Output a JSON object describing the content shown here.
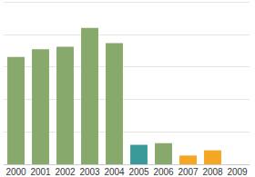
{
  "chart_data": {
    "type": "bar",
    "categories": [
      "2000",
      "2001",
      "2002",
      "2003",
      "2004",
      "2005",
      "2006",
      "2007",
      "2008",
      "2009"
    ],
    "values": [
      3.3,
      3.54,
      3.62,
      4.2,
      3.73,
      0.6,
      0.65,
      0.27,
      0.43,
      null
    ],
    "colors": [
      "#87a96b",
      "#87a96b",
      "#87a96b",
      "#87a96b",
      "#87a96b",
      "#3a9a9a",
      "#87a96b",
      "#f5a623",
      "#f5a623",
      "#f5a623"
    ],
    "ylim": [
      0,
      5
    ],
    "yticks": [
      0,
      1,
      2,
      3,
      4,
      5
    ],
    "grid": true,
    "tick_labels": "x"
  }
}
